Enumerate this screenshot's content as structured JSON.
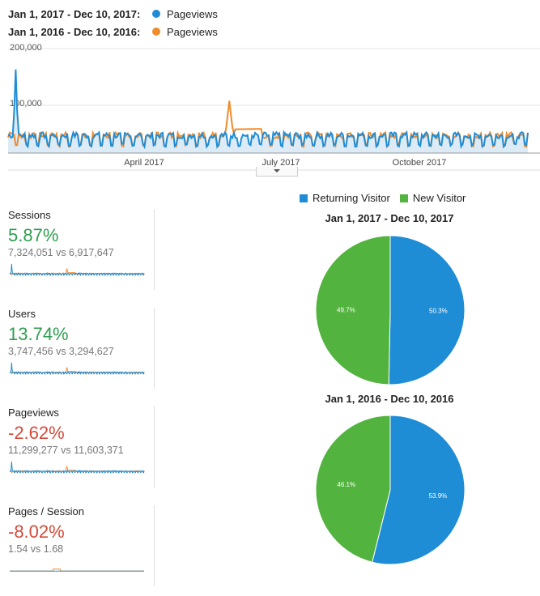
{
  "legend": {
    "current_range": "Jan 1, 2017 - Dec 10, 2017:",
    "current_metric": "Pageviews",
    "previous_range": "Jan 1, 2016 - Dec 10, 2016:",
    "previous_metric": "Pageviews",
    "current_color": "#1f8dd6",
    "previous_color": "#f08b2c"
  },
  "chart_data": {
    "type": "line",
    "y_ticks": [
      "200,000",
      "100,000"
    ],
    "ylim": [
      0,
      200000
    ],
    "x_ticks": [
      "April 2017",
      "July 2017",
      "October 2017"
    ],
    "series": [
      {
        "name": "Pageviews",
        "range": "Jan 1, 2017 - Dec 10, 2017"
      },
      {
        "name": "Pageviews",
        "range": "Jan 1, 2016 - Dec 10, 2016"
      }
    ],
    "notes": "Daily values roughly between 10,000 and 45,000 with weekly cycles; 2017 spike near 160,000 in early January; 2016 spike near 100,000 in late May."
  },
  "metrics": [
    {
      "title": "Sessions",
      "change": "5.87%",
      "direction": "up",
      "comparison": "7,324,051 vs 6,917,647"
    },
    {
      "title": "Users",
      "change": "13.74%",
      "direction": "up",
      "comparison": "3,747,456 vs 3,294,627"
    },
    {
      "title": "Pageviews",
      "change": "-2.62%",
      "direction": "down",
      "comparison": "11,299,277 vs 11,603,371"
    },
    {
      "title": "Pages / Session",
      "change": "-8.02%",
      "direction": "down",
      "comparison": "1.54 vs 1.68"
    }
  ],
  "pie_legend": {
    "returning_label": "Returning Visitor",
    "new_label": "New Visitor",
    "returning_color": "#1f8dd6",
    "new_color": "#53b33f"
  },
  "pies": [
    {
      "title": "Jan 1, 2017 - Dec 10, 2017",
      "returning_pct": 50.3,
      "new_pct": 49.7,
      "returning_label": "50.3%",
      "new_label": "49.7%"
    },
    {
      "title": "Jan 1, 2016 - Dec 10, 2016",
      "returning_pct": 53.9,
      "new_pct": 46.1,
      "returning_label": "53.9%",
      "new_label": "46.1%"
    }
  ]
}
